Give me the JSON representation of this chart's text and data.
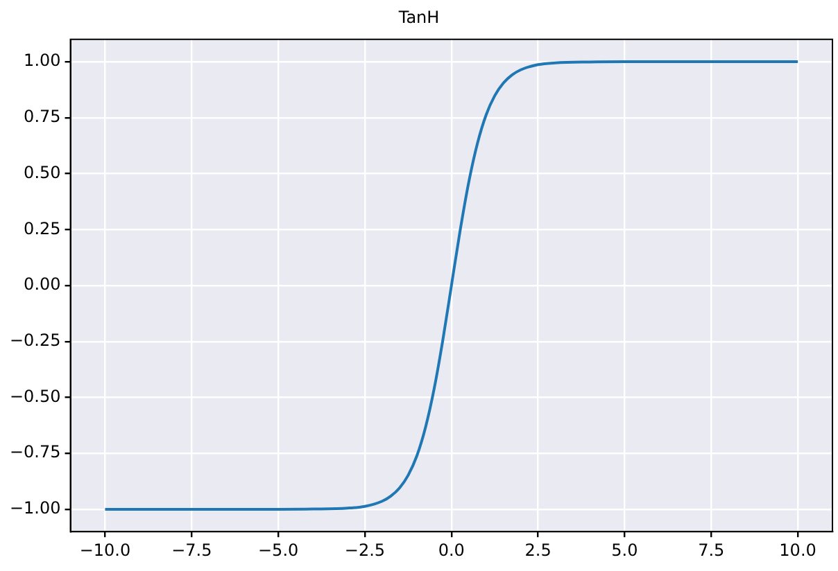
{
  "chart_data": {
    "type": "line",
    "title": "TanH",
    "x": [
      -10,
      -5,
      -4,
      -3,
      -2.5,
      -2,
      -1.75,
      -1.5,
      -1.25,
      -1,
      -0.75,
      -0.5,
      -0.25,
      0,
      0.25,
      0.5,
      0.75,
      1,
      1.25,
      1.5,
      1.75,
      2,
      2.5,
      3,
      4,
      5,
      10
    ],
    "series": [
      {
        "color": "#1f77b4",
        "values": [
          -1,
          -1,
          -0.999,
          -0.995,
          -0.987,
          -0.964,
          -0.941,
          -0.905,
          -0.848,
          -0.762,
          -0.635,
          -0.462,
          -0.245,
          0,
          0.245,
          0.462,
          0.635,
          0.762,
          0.848,
          0.905,
          0.941,
          0.964,
          0.987,
          0.995,
          0.999,
          1,
          1
        ]
      }
    ],
    "xlim": [
      -11,
      11
    ],
    "xticks": [
      {
        "value": -10,
        "label": "−10.0"
      },
      {
        "value": -7.5,
        "label": "−7.5"
      },
      {
        "value": -5,
        "label": "−5.0"
      },
      {
        "value": -2.5,
        "label": "−2.5"
      },
      {
        "value": 0,
        "label": "0.0"
      },
      {
        "value": 2.5,
        "label": "2.5"
      },
      {
        "value": 5,
        "label": "5.0"
      },
      {
        "value": 7.5,
        "label": "7.5"
      },
      {
        "value": 10,
        "label": "10.0"
      }
    ],
    "ylim": [
      -1.1,
      1.1
    ],
    "yticks": [
      {
        "value": -1,
        "label": "−1.00"
      },
      {
        "value": -0.75,
        "label": "−0.75"
      },
      {
        "value": -0.5,
        "label": "−0.50"
      },
      {
        "value": -0.25,
        "label": "−0.25"
      },
      {
        "value": 0,
        "label": "0.00"
      },
      {
        "value": 0.25,
        "label": "0.25"
      },
      {
        "value": 0.5,
        "label": "0.50"
      },
      {
        "value": 0.75,
        "label": "0.75"
      },
      {
        "value": 1,
        "label": "1.00"
      }
    ],
    "grid": true,
    "marker": "none",
    "line_style": "solid"
  }
}
